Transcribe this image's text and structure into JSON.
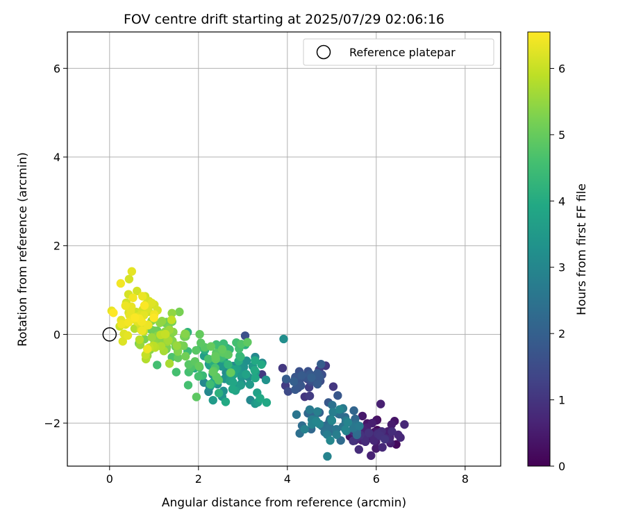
{
  "chart_data": {
    "type": "scatter",
    "title": "FOV centre drift starting at 2025/07/29 02:06:16",
    "xlabel": "Angular distance from reference (arcmin)",
    "ylabel": "Rotation from reference (arcmin)",
    "xlim": [
      -0.95,
      8.8
    ],
    "ylim": [
      -2.97,
      6.82
    ],
    "xticks": [
      0,
      2,
      4,
      6,
      8
    ],
    "yticks": [
      -2,
      0,
      2,
      4,
      6
    ],
    "xtick_labels": [
      "0",
      "2",
      "4",
      "6",
      "8"
    ],
    "ytick_labels": [
      "−2",
      "0",
      "2",
      "4",
      "6"
    ],
    "grid": true,
    "legend": {
      "placement": "top-right",
      "entries": [
        {
          "label": "Reference platepar",
          "marker": "open-circle"
        }
      ]
    },
    "reference_point": {
      "x": 0,
      "y": 0,
      "label": "Reference platepar"
    },
    "colorbar": {
      "label": "Hours from first FF file",
      "colormap": "viridis",
      "range": [
        0,
        6.55
      ],
      "ticks": [
        0,
        1,
        2,
        3,
        4,
        5,
        6
      ],
      "tick_labels": [
        "0",
        "1",
        "2",
        "3",
        "4",
        "5",
        "6"
      ]
    },
    "clusters": [
      {
        "hours_start": 0.0,
        "hours_end": 1.0,
        "x_center": 5.95,
        "y_center": -2.25,
        "x_spread": 0.28,
        "y_spread": 0.18,
        "count": 50
      },
      {
        "hours_start": 1.0,
        "hours_end": 2.0,
        "x_center": 4.45,
        "y_center": -1.05,
        "x_spread": 0.35,
        "y_spread": 0.2,
        "count": 40
      },
      {
        "hours_start": 2.0,
        "hours_end": 3.0,
        "x_center": 4.95,
        "y_center": -2.0,
        "x_spread": 0.4,
        "y_spread": 0.2,
        "count": 55
      },
      {
        "hours_start": 3.0,
        "hours_end": 4.0,
        "x_center": 2.8,
        "y_center": -0.9,
        "x_spread": 0.35,
        "y_spread": 0.25,
        "count": 65
      },
      {
        "hours_start": 4.0,
        "hours_end": 5.0,
        "x_center": 2.3,
        "y_center": -0.55,
        "x_spread": 0.45,
        "y_spread": 0.3,
        "count": 60
      },
      {
        "hours_start": 5.0,
        "hours_end": 6.0,
        "x_center": 1.25,
        "y_center": -0.05,
        "x_spread": 0.35,
        "y_spread": 0.3,
        "count": 65
      },
      {
        "hours_start": 6.0,
        "hours_end": 6.55,
        "x_center": 0.65,
        "y_center": 0.45,
        "x_spread": 0.22,
        "y_spread": 0.3,
        "count": 55
      }
    ],
    "highlighted_points": [
      {
        "x": 0.5,
        "y": 1.42,
        "hours": 6.3
      },
      {
        "x": 0.25,
        "y": 1.15,
        "hours": 6.45
      },
      {
        "x": 0.85,
        "y": -0.33,
        "hours": 6.4
      },
      {
        "x": 0.85,
        "y": -0.48,
        "hours": 5.5
      },
      {
        "x": 3.05,
        "y": -0.03,
        "hours": 1.6
      },
      {
        "x": 4.9,
        "y": -2.75,
        "hours": 2.9
      },
      {
        "x": 6.45,
        "y": -2.48,
        "hours": 0.15
      },
      {
        "x": 6.1,
        "y": -1.57,
        "hours": 0.6
      },
      {
        "x": 1.5,
        "y": -0.85,
        "hours": 4.6
      }
    ]
  }
}
